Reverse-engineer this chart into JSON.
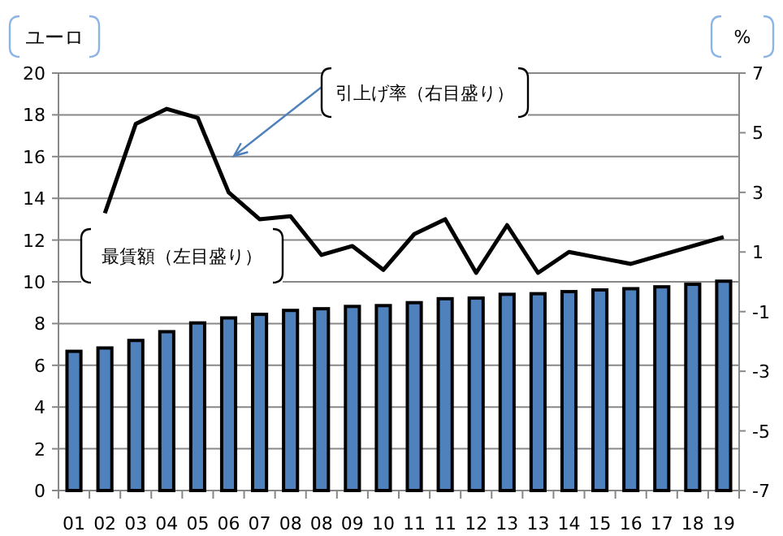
{
  "chart_data": {
    "type": "bar",
    "ylabel": "ユーロ",
    "y2label": "%",
    "categories": [
      "01",
      "02",
      "03",
      "04",
      "05",
      "06",
      "07",
      "08",
      "08",
      "09",
      "10",
      "11",
      "11",
      "12",
      "13",
      "13",
      "14",
      "15",
      "16",
      "17",
      "18",
      "19"
    ],
    "series": [
      {
        "color": "#4f81bd",
        "values": [
          6.67,
          6.83,
          7.19,
          7.61,
          8.03,
          8.27,
          8.44,
          8.63,
          8.71,
          8.82,
          8.86,
          9.0,
          9.19,
          9.22,
          9.4,
          9.43,
          9.53,
          9.61,
          9.67,
          9.76,
          9.88,
          10.03
        ]
      },
      {
        "type": "line",
        "axis": "y2",
        "color": "#000000",
        "values": [
          null,
          2.3,
          5.3,
          5.8,
          5.5,
          3.0,
          2.1,
          2.2,
          0.9,
          1.2,
          0.4,
          1.6,
          2.1,
          0.3,
          1.9,
          0.3,
          1.0,
          0.8,
          0.6,
          0.9,
          1.2,
          1.5
        ]
      }
    ],
    "ylim": [
      0,
      20
    ],
    "yticks": [
      0,
      2,
      4,
      6,
      8,
      10,
      12,
      14,
      16,
      18,
      20
    ],
    "y2lim": [
      -7,
      7
    ],
    "y2ticks": [
      -7,
      -5,
      -3,
      -1,
      1,
      3,
      5,
      7
    ],
    "grid": "y",
    "annotations": [
      "引上げ率（右目盛り）",
      "最賃額（左目盛り）"
    ]
  }
}
